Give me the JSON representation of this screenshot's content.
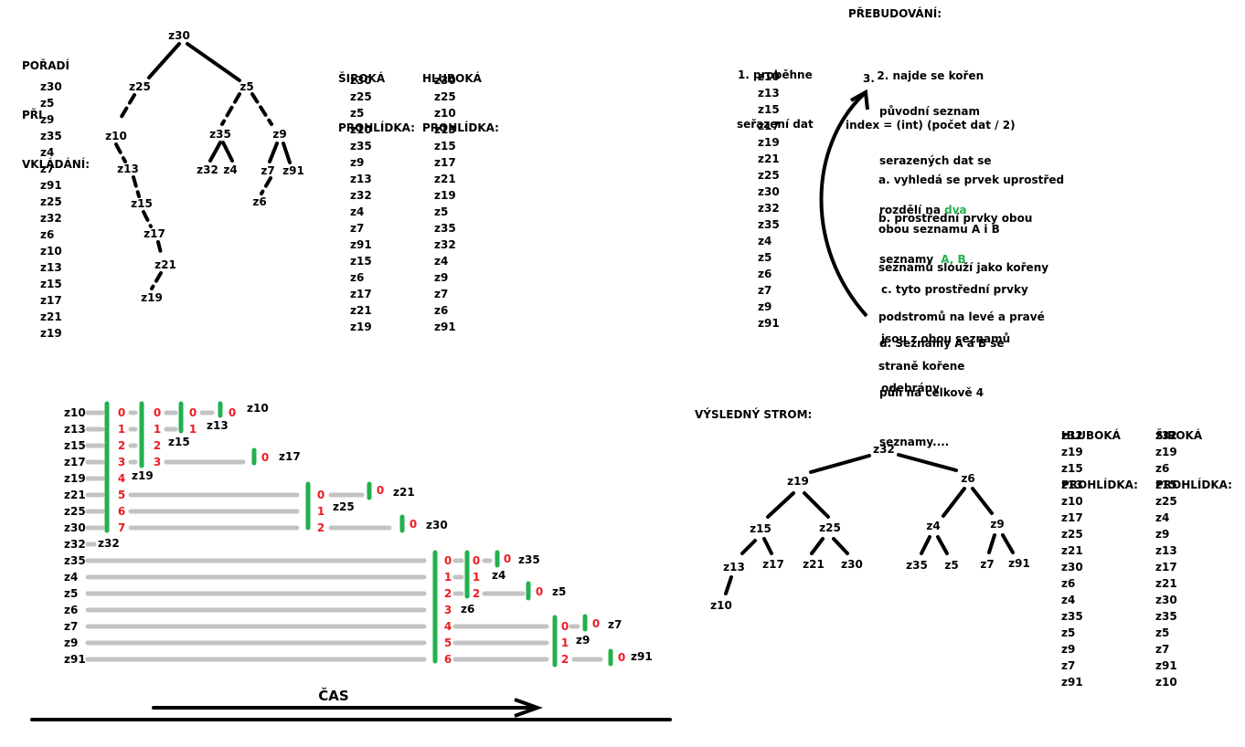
{
  "insert_order": {
    "label_lines": [
      "POŘADÍ",
      "PŘI",
      "VKLÁDÁNÍ:"
    ],
    "items": [
      "z30",
      "z5",
      "z9",
      "z35",
      "z4",
      "z7",
      "z91",
      "z25",
      "z32",
      "z6",
      "z10",
      "z13",
      "z15",
      "z17",
      "z21",
      "z19"
    ]
  },
  "tree1": {
    "nodes": [
      "z30",
      "z25",
      "z5",
      "z10",
      "z35",
      "z9",
      "z13",
      "z32",
      "z4",
      "z7",
      "z91",
      "z6",
      "z15",
      "z17",
      "z21",
      "z19"
    ]
  },
  "traversal1": {
    "bfs_label_lines": [
      "ŠIROKÁ",
      "PROHLÍDKA:"
    ],
    "bfs": [
      "z30",
      "z25",
      "z5",
      "z10",
      "z35",
      "z9",
      "z13",
      "z32",
      "z4",
      "z7",
      "z91",
      "z15",
      "z6",
      "z17",
      "z21",
      "z19"
    ],
    "dfs_label_lines": [
      "HLUBOKÁ",
      "PROHLÍDKA:"
    ],
    "dfs": [
      "z30",
      "z25",
      "z10",
      "z13",
      "z15",
      "z17",
      "z21",
      "z19",
      "z5",
      "z35",
      "z32",
      "z4",
      "z9",
      "z7",
      "z6",
      "z91"
    ]
  },
  "rebuild": {
    "title": "PŘEBUDOVÁNÍ:",
    "step1_lines": [
      "1. proběhne",
      "seřazení dat"
    ],
    "sorted": [
      "z10",
      "z13",
      "z15",
      "z17",
      "z19",
      "z21",
      "z25",
      "z30",
      "z32",
      "z35",
      "z4",
      "z5",
      "z6",
      "z7",
      "z9",
      "z91"
    ],
    "step2_lines": [
      "2. najde se kořen",
      "index = (int) (počet dat / 2)"
    ],
    "step3_num": "3.",
    "step3_lines_a": [
      "původní seznam",
      "serazených dat se"
    ],
    "step3_prefix": "rozdělí na ",
    "step3_dva": "dva",
    "step3_seznamy": "seznamy",
    "step3_ab": "A, B",
    "a_lines": [
      "a. vyhledá se prvek uprostřed",
      "obou seznamu A i B"
    ],
    "b_lines": [
      "b. prostřední prvky obou",
      "seznamů slouží jako kořeny",
      "podstromů na levé a pravé",
      "straně kořene"
    ],
    "c_lines": [
      "c. tyto prostřední prvky",
      "jsou z obou seznamů",
      "odebrány"
    ],
    "d_lines": [
      "d. Seznamy A a B se",
      "půlí na celkově 4",
      "seznamy...."
    ]
  },
  "process": {
    "rows": [
      "z10",
      "z13",
      "z15",
      "z17",
      "z19",
      "z21",
      "z25",
      "z30",
      "z32",
      "z35",
      "z4",
      "z5",
      "z6",
      "z7",
      "z9",
      "z91"
    ],
    "indices_a": [
      "0",
      "1",
      "2",
      "3",
      "4",
      "5",
      "6",
      "7"
    ],
    "indices_a2": [
      "0",
      "1",
      "2",
      "3"
    ],
    "indices_a3": [
      "0",
      "1"
    ],
    "zero": "0",
    "indices_b": [
      "0",
      "1",
      "2"
    ],
    "indices_c": [
      "0",
      "1",
      "2",
      "3",
      "4",
      "5",
      "6"
    ],
    "indices_c2": [
      "0",
      "1",
      "2"
    ],
    "indices_c3": [
      "0",
      "1",
      "2"
    ],
    "labels": {
      "z10": "z10",
      "z13": "z13",
      "z15": "z15",
      "z17": "z17",
      "z19": "z19",
      "z21": "z21",
      "z25": "z25",
      "z30": "z30",
      "z32": "z32",
      "z35": "z35",
      "z4": "z4",
      "z5": "z5",
      "z6": "z6",
      "z7": "z7",
      "z9": "z9",
      "z91": "z91"
    },
    "time_label": "ČAS"
  },
  "result": {
    "title": "VÝSLEDNÝ STROM:",
    "nodes": [
      "z32",
      "z19",
      "z6",
      "z15",
      "z25",
      "z4",
      "z9",
      "z13",
      "z17",
      "z21",
      "z30",
      "z35",
      "z5",
      "z7",
      "z91",
      "z10"
    ],
    "dfs_label_lines": [
      "HLUBOKÁ",
      "PROHLÍDKA:"
    ],
    "dfs": [
      "z32",
      "z19",
      "z15",
      "z13",
      "z10",
      "z17",
      "z25",
      "z21",
      "z30",
      "z6",
      "z4",
      "z35",
      "z5",
      "z9",
      "z7",
      "z91"
    ],
    "bfs_label_lines": [
      "ŠIROKÁ",
      "PROHLÍDKA:"
    ],
    "bfs": [
      "z32",
      "z19",
      "z6",
      "z15",
      "z25",
      "z4",
      "z9",
      "z13",
      "z17",
      "z21",
      "z30",
      "z35",
      "z5",
      "z7",
      "z91",
      "z10"
    ]
  },
  "colors": {
    "green": "#22b14c",
    "red": "#ed1c24",
    "gray": "#c3c3c3",
    "black": "#000000"
  }
}
